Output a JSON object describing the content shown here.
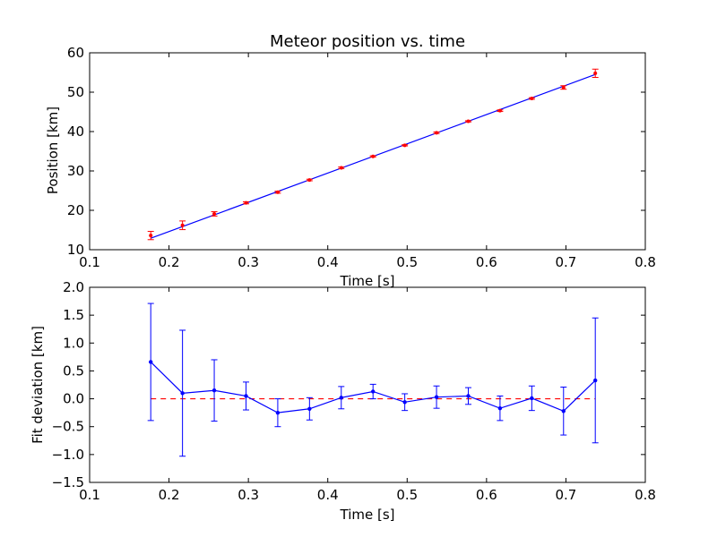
{
  "chart_data": [
    {
      "type": "scatter",
      "title": "Meteor position vs. time",
      "xlabel": "Time [s]",
      "ylabel": "Position [km]",
      "xlim": [
        0.1,
        0.8
      ],
      "ylim": [
        10,
        60
      ],
      "xticks": [
        "0.1",
        "0.2",
        "0.3",
        "0.4",
        "0.5",
        "0.6",
        "0.7",
        "0.8"
      ],
      "yticks": [
        "10",
        "20",
        "30",
        "40",
        "50",
        "60"
      ],
      "grid": false,
      "points": {
        "x": [
          0.177,
          0.217,
          0.257,
          0.297,
          0.337,
          0.377,
          0.417,
          0.457,
          0.497,
          0.537,
          0.577,
          0.617,
          0.657,
          0.697,
          0.737
        ],
        "y": [
          13.6,
          16.2,
          19.1,
          21.9,
          24.6,
          27.7,
          30.8,
          33.7,
          36.5,
          39.7,
          42.6,
          45.3,
          48.4,
          51.2,
          54.8
        ],
        "err": [
          1.05,
          1.1,
          0.55,
          0.25,
          0.25,
          0.2,
          0.2,
          0.15,
          0.15,
          0.2,
          0.15,
          0.2,
          0.2,
          0.45,
          1.05
        ],
        "color": "#ff0000"
      },
      "fit_line": {
        "x": [
          0.177,
          0.737
        ],
        "y": [
          12.9,
          54.5
        ],
        "color": "#0000ff"
      }
    },
    {
      "type": "line",
      "xlabel": "Time [s]",
      "ylabel": "Fit deviation [km]",
      "xlim": [
        0.1,
        0.8
      ],
      "ylim": [
        -1.5,
        2.0
      ],
      "xticks": [
        "0.1",
        "0.2",
        "0.3",
        "0.4",
        "0.5",
        "0.6",
        "0.7",
        "0.8"
      ],
      "yticks": [
        "−1.5",
        "−1.0",
        "−0.5",
        "0.0",
        "0.5",
        "1.0",
        "1.5",
        "2.0"
      ],
      "grid": false,
      "series": [
        {
          "x": [
            0.177,
            0.217,
            0.257,
            0.297,
            0.337,
            0.377,
            0.417,
            0.457,
            0.497,
            0.537,
            0.577,
            0.617,
            0.657,
            0.697,
            0.737
          ],
          "y": [
            0.66,
            0.1,
            0.15,
            0.05,
            -0.25,
            -0.18,
            0.02,
            0.13,
            -0.06,
            0.03,
            0.05,
            -0.17,
            0.01,
            -0.22,
            0.33
          ],
          "err": [
            1.05,
            1.13,
            0.55,
            0.25,
            0.25,
            0.2,
            0.2,
            0.13,
            0.15,
            0.2,
            0.15,
            0.22,
            0.22,
            0.43,
            1.12
          ],
          "color": "#0000ff"
        }
      ],
      "reference_line": {
        "y": 0.0,
        "x": [
          0.177,
          0.737
        ],
        "color": "#ff0000",
        "style": "dashed"
      }
    }
  ]
}
